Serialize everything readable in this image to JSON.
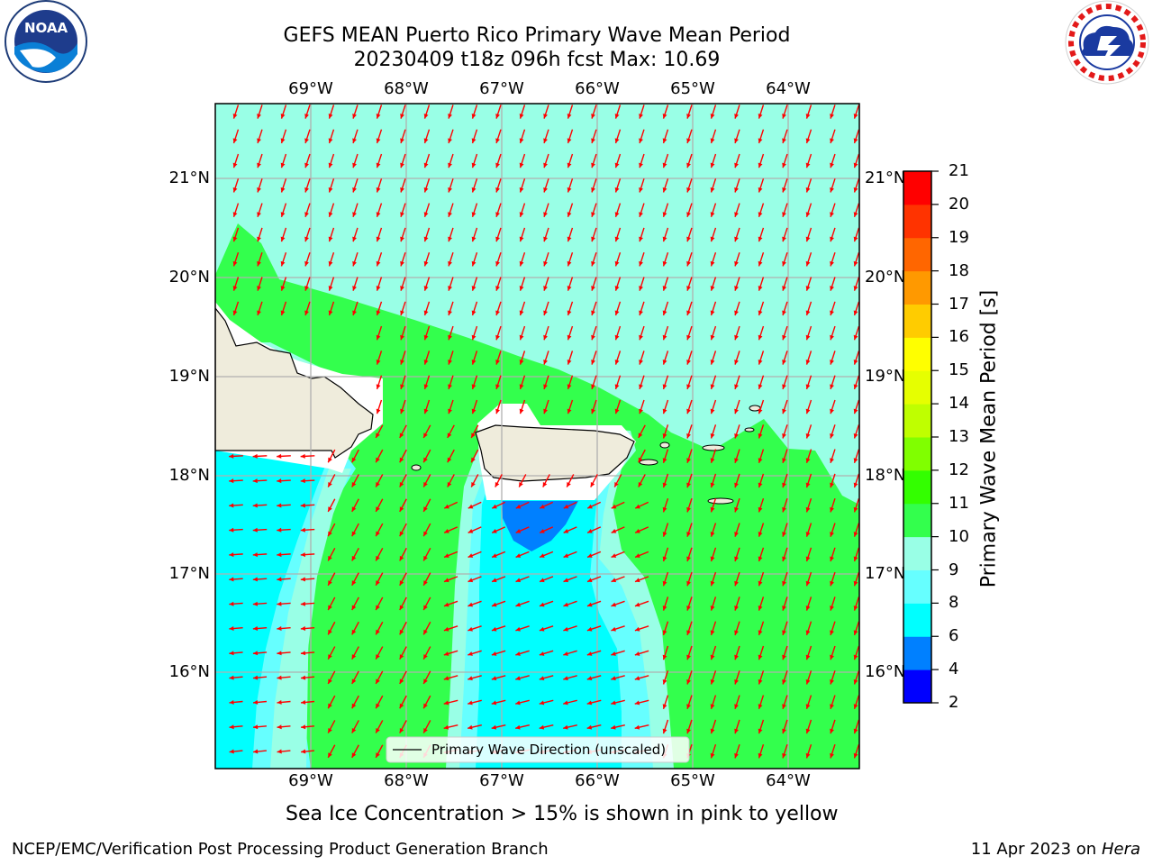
{
  "title": {
    "line1": "GEFS MEAN Puerto Rico Primary Wave Mean Period",
    "line2": "20230409 t18z 096h fcst   Max: 10.69"
  },
  "logos": {
    "left": "noaa-logo",
    "left_text": "NOAA",
    "left_ring_text": "NATIONAL OCEANIC AND ATMOSPHERIC ADMINISTRATION · U.S. DEPARTMENT OF COMMERCE",
    "right": "nws-logo",
    "right_text": "NATIONAL WEATHER SERVICE"
  },
  "map": {
    "lon_labels": [
      "69°W",
      "68°W",
      "67°W",
      "66°W",
      "65°W",
      "64°W"
    ],
    "lat_labels": [
      "21°N",
      "20°N",
      "19°N",
      "18°N",
      "17°N",
      "16°N"
    ],
    "legend": "Primary Wave Direction (unscaled)",
    "colors": {
      "land": "#efecdc",
      "ice_free": "#ffffff",
      "p6_8": "#00ffff",
      "p8_9": "#66ffff",
      "p9_10": "#99ffe6",
      "p10_11": "#33ff4d",
      "p4_6": "#0080ff",
      "arrow": "#ff0000",
      "grid": "#b0b0b0"
    }
  },
  "colorbar": {
    "title": "Primary Wave Mean Period [s]",
    "ticks": [
      "21",
      "20",
      "19",
      "18",
      "17",
      "16",
      "15",
      "14",
      "13",
      "12",
      "11",
      "10",
      "9",
      "8",
      "6",
      "4",
      "2"
    ],
    "colors": [
      "#0000ff",
      "#0080ff",
      "#00ffff",
      "#66ffff",
      "#99ffe6",
      "#33ff4d",
      "#33ff00",
      "#80ff00",
      "#bfff00",
      "#e6ff00",
      "#ffff00",
      "#ffcc00",
      "#ff9900",
      "#ff6600",
      "#ff3300",
      "#ff0000"
    ]
  },
  "subtitle": "Sea Ice Concentration > 15% is shown in pink to yellow",
  "footer": {
    "left": "NCEP/EMC/Verification Post Processing Product Generation Branch",
    "date": "11 Apr 2023 on ",
    "host": "Hera"
  }
}
